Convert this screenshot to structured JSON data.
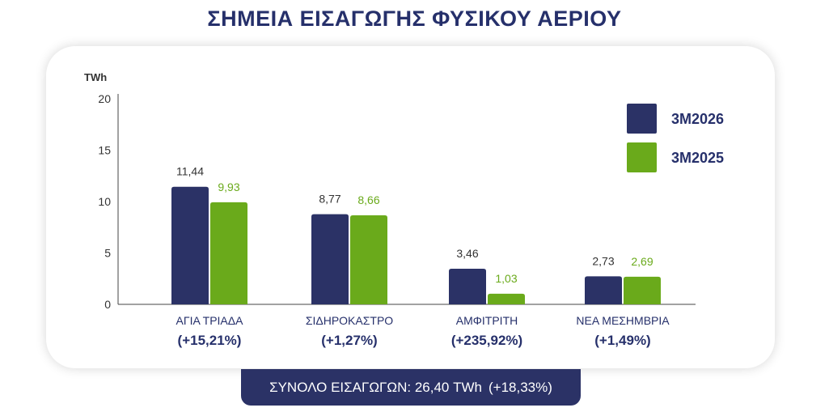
{
  "title": "ΣΗΜΕΙΑ ΕΙΣΑΓΩΓΗΣ ΦΥΣΙΚΟΥ ΑΕΡΙΟΥ",
  "colors": {
    "primary": "#2b3266",
    "secondary": "#6aaa1b",
    "title": "#26306b"
  },
  "chart_data": {
    "type": "bar",
    "ylabel": "TWh",
    "ylim": [
      0,
      20
    ],
    "yticks": [
      "0",
      "5",
      "10",
      "15",
      "20"
    ],
    "grid": false,
    "legend_position": "top-right",
    "categories": [
      "ΑΓΙΑ ΤΡΙΑΔΑ",
      "ΣΙΔΗΡΟΚΑΣΤΡΟ",
      "ΑΜΦΙΤΡΙΤΗ",
      "ΝΕΑ ΜΕΣΗΜΒΡΙΑ"
    ],
    "category_changes": [
      "(+15,21%)",
      "(+1,27%)",
      "(+235,92%)",
      "(+1,49%)"
    ],
    "series": [
      {
        "name": "3M2026",
        "color": "#2b3266",
        "values": [
          11.44,
          8.77,
          3.46,
          2.73
        ],
        "labels": [
          "11,44",
          "8,77",
          "3,46",
          "2,73"
        ]
      },
      {
        "name": "3M2025",
        "color": "#6aaa1b",
        "values": [
          9.93,
          8.66,
          1.03,
          2.69
        ],
        "labels": [
          "9,93",
          "8,66",
          "1,03",
          "2,69"
        ]
      }
    ]
  },
  "total": {
    "label": "ΣΥΝΟΛΟ ΕΙΣΑΓΩΓΩΝ: 26,40 TWh",
    "change": "(+18,33%)"
  }
}
